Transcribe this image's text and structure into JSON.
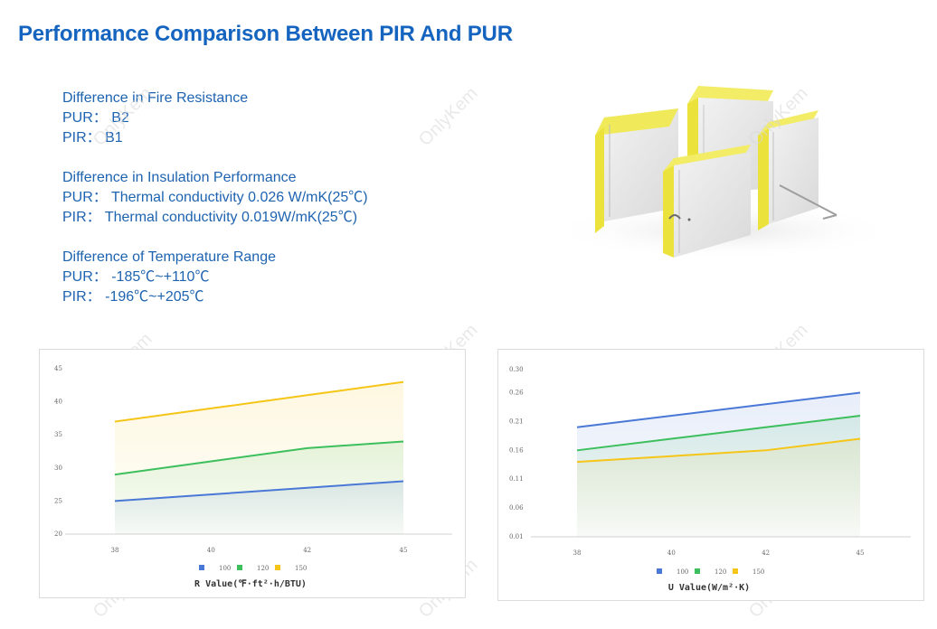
{
  "title": "Performance Comparison Between PIR And PUR",
  "specs": [
    {
      "heading": "Difference in Fire Resistance",
      "pur": "PUR： B2",
      "pir": "PIR： B1"
    },
    {
      "heading": "Difference in Insulation Performance",
      "pur": "PUR： Thermal conductivity 0.026 W/mK(25℃)",
      "pir": "PIR： Thermal conductivity 0.019W/mK(25℃)"
    },
    {
      "heading": "Difference of Temperature Range",
      "pur": "PUR： -185℃~+110℃",
      "pir": "PIR： -196℃~+205℃"
    }
  ],
  "watermark": "OnlyKem",
  "colors": {
    "title": "#1565c0",
    "text": "#1e63b0",
    "blue": "#4a78d6",
    "green": "#3cbf5c",
    "yellow": "#f5c518"
  },
  "chart_data": [
    {
      "type": "line",
      "categories": [
        "38",
        "40",
        "42",
        "45"
      ],
      "series": [
        {
          "name": "100",
          "values": [
            25,
            26,
            27,
            28
          ]
        },
        {
          "name": "120",
          "values": [
            29,
            31,
            33,
            34
          ]
        },
        {
          "name": "150",
          "values": [
            37,
            39,
            41,
            43
          ]
        }
      ],
      "yticks": [
        "20",
        "25",
        "30",
        "35",
        "40",
        "45"
      ],
      "ylim": [
        20,
        45
      ],
      "xlabel": "R Value(℉·ft²·h/BTU)",
      "legend": "bottom"
    },
    {
      "type": "line",
      "categories": [
        "38",
        "40",
        "42",
        "45"
      ],
      "series": [
        {
          "name": "100",
          "values": [
            0.2,
            0.22,
            0.24,
            0.26
          ]
        },
        {
          "name": "120",
          "values": [
            0.16,
            0.18,
            0.2,
            0.22
          ]
        },
        {
          "name": "150",
          "values": [
            0.14,
            0.15,
            0.16,
            0.18
          ]
        }
      ],
      "yticks": [
        "0.01",
        "0.06",
        "0.11",
        "0.16",
        "0.21",
        "0.26",
        "0.30"
      ],
      "ylim": [
        0.01,
        0.3
      ],
      "xlabel": "U Value(W/m²·K)",
      "legend": "bottom"
    }
  ]
}
